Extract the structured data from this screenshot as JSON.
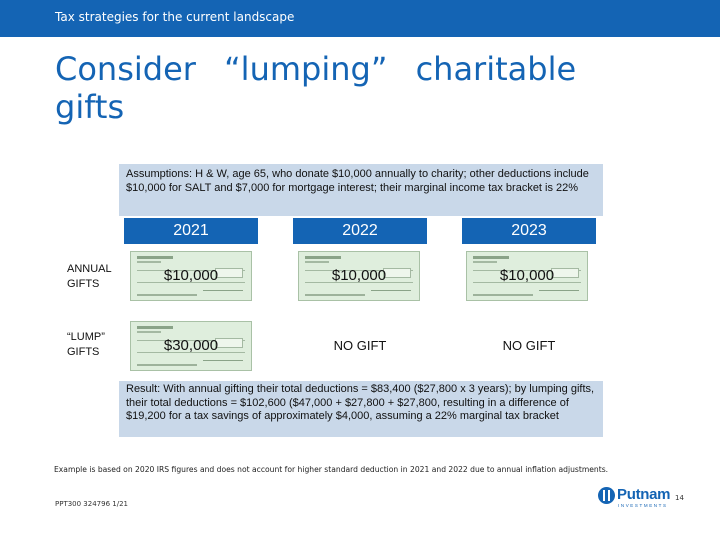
{
  "header": {
    "text": "Tax strategies for the current landscape"
  },
  "title": "Consider “lumping” charitable gifts",
  "assumptions": "Assumptions: H & W, age 65, who donate $10,000 annually to charity; other deductions include $10,000 for SALT and $7,000 for mortgage interest; their marginal income tax bracket is 22%",
  "years": [
    "2021",
    "2022",
    "2023"
  ],
  "rows": [
    {
      "label": "ANNUAL GIFTS",
      "cells": [
        "$10,000",
        "$10,000",
        "$10,000"
      ]
    },
    {
      "label": "“LUMP” GIFTS",
      "cells": [
        "$30,000",
        "NO GIFT",
        "NO GIFT"
      ]
    }
  ],
  "result": "Result: With annual gifting their total deductions = $83,400 ($27,800 x 3 years); by lumping gifts, their total deductions = $102,600 ($47,000 + $27,800 + $27,800, resulting in a difference of $19,200 for a tax savings of approximately $4,000, assuming a 22% marginal tax bracket",
  "footnote": "Example is based on 2020 IRS figures and does not account for higher standard deduction in 2021 and 2022 due to annual inflation adjustments.",
  "footer_code": "PPT300 324796 1/21",
  "logo": {
    "name": "Putnam",
    "sub": "INVESTMENTS",
    "icon": "putnam-logo-mark-icon"
  },
  "page_number": "14",
  "colors": {
    "brand_blue": "#1464b4",
    "box_fill": "#c9d8e9",
    "check_fill": "#dfeedd"
  }
}
